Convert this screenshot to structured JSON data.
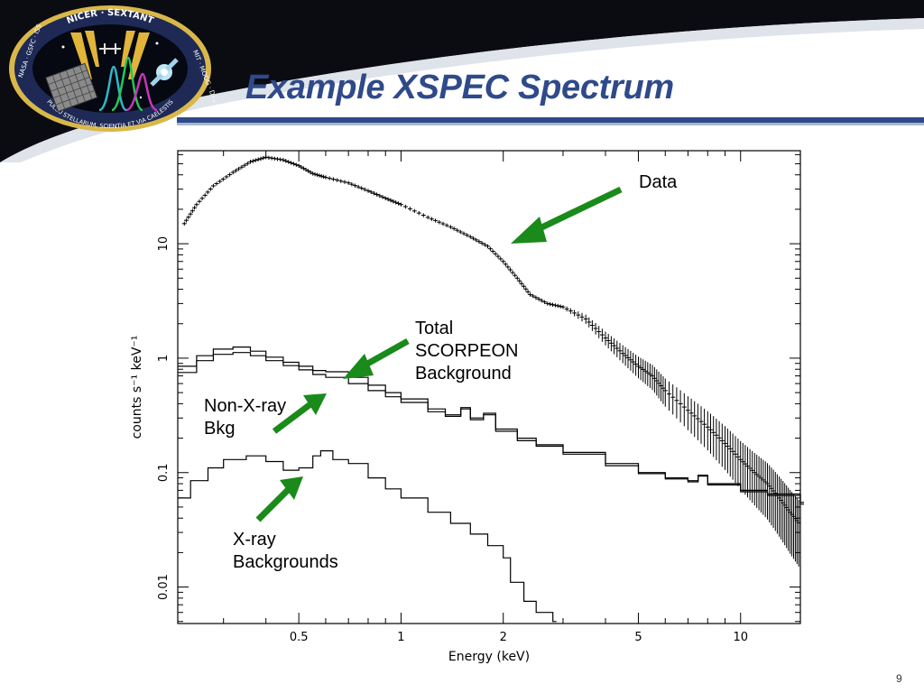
{
  "slide": {
    "title": "Example XSPEC Spectrum",
    "page_number": "9"
  },
  "logo": {
    "top_text": "NICER · SEXTANT",
    "left_text": "NASA · GSFC · ISS",
    "right_text": "MIT · MOOG · DTU",
    "bottom_text": "PULSU STELLARUM, SCIENTIA ET VIA CAELESTIS"
  },
  "colors": {
    "title": "#2f4a8a",
    "header_dark": "#0b0b12",
    "arrow": "#1a8a1a",
    "header_line": "#2f4a8a"
  },
  "chart_data": {
    "type": "line",
    "xlabel": "Energy (keV)",
    "ylabel": "counts s⁻¹ keV⁻¹",
    "xscale": "log",
    "yscale": "log",
    "xlim": [
      0.22,
      15
    ],
    "ylim": [
      0.0048,
      65
    ],
    "x_ticks": [
      {
        "value": 0.5,
        "label": "0.5"
      },
      {
        "value": 1,
        "label": "1"
      },
      {
        "value": 2,
        "label": "2"
      },
      {
        "value": 5,
        "label": "5"
      },
      {
        "value": 10,
        "label": "10"
      }
    ],
    "y_ticks": [
      {
        "value": 0.01,
        "label": "0.01"
      },
      {
        "value": 0.1,
        "label": "0.1"
      },
      {
        "value": 1,
        "label": "1"
      },
      {
        "value": 10,
        "label": "10"
      }
    ],
    "series": [
      {
        "name": "Data",
        "style": "crosses",
        "points": [
          [
            0.23,
            15
          ],
          [
            0.25,
            22
          ],
          [
            0.28,
            32
          ],
          [
            0.32,
            42
          ],
          [
            0.36,
            52
          ],
          [
            0.4,
            57
          ],
          [
            0.45,
            54
          ],
          [
            0.5,
            48
          ],
          [
            0.55,
            41
          ],
          [
            0.6,
            38
          ],
          [
            0.7,
            34
          ],
          [
            0.8,
            29
          ],
          [
            0.9,
            25
          ],
          [
            1.0,
            22
          ],
          [
            1.2,
            17
          ],
          [
            1.4,
            14
          ],
          [
            1.6,
            11.5
          ],
          [
            1.8,
            9.5
          ],
          [
            2.0,
            7.0
          ],
          [
            2.2,
            5.0
          ],
          [
            2.4,
            3.6
          ],
          [
            2.7,
            3.0
          ],
          [
            3.0,
            2.8
          ],
          [
            3.5,
            2.2
          ],
          [
            4.0,
            1.5
          ],
          [
            4.5,
            1.1
          ],
          [
            5.0,
            0.85
          ],
          [
            5.5,
            0.7
          ],
          [
            6.0,
            0.52
          ],
          [
            7.0,
            0.35
          ],
          [
            8.0,
            0.25
          ],
          [
            9.0,
            0.18
          ],
          [
            10.0,
            0.13
          ],
          [
            11.0,
            0.1
          ],
          [
            12.0,
            0.08
          ],
          [
            13.0,
            0.06
          ],
          [
            14.0,
            0.045
          ],
          [
            15.0,
            0.035
          ]
        ]
      },
      {
        "name": "Total SCORPEON Background",
        "style": "histogram",
        "points": [
          [
            0.22,
            0.85
          ],
          [
            0.25,
            1.05
          ],
          [
            0.28,
            1.2
          ],
          [
            0.32,
            1.25
          ],
          [
            0.36,
            1.15
          ],
          [
            0.4,
            1.02
          ],
          [
            0.45,
            0.92
          ],
          [
            0.5,
            0.85
          ],
          [
            0.55,
            0.78
          ],
          [
            0.6,
            0.76
          ],
          [
            0.7,
            0.68
          ],
          [
            0.8,
            0.58
          ],
          [
            0.9,
            0.5
          ],
          [
            1.0,
            0.44
          ],
          [
            1.2,
            0.36
          ],
          [
            1.35,
            0.32
          ],
          [
            1.5,
            0.37
          ],
          [
            1.6,
            0.3
          ],
          [
            1.75,
            0.33
          ],
          [
            1.9,
            0.24
          ],
          [
            2.2,
            0.2
          ],
          [
            2.5,
            0.175
          ],
          [
            3.0,
            0.15
          ],
          [
            4.0,
            0.12
          ],
          [
            5.0,
            0.1
          ],
          [
            6.0,
            0.09
          ],
          [
            7.0,
            0.085
          ],
          [
            7.5,
            0.095
          ],
          [
            8.0,
            0.08
          ],
          [
            10.0,
            0.07
          ],
          [
            12.0,
            0.065
          ],
          [
            15.0,
            0.055
          ]
        ]
      },
      {
        "name": "Non-X-ray Bkg",
        "style": "histogram",
        "points": [
          [
            0.22,
            0.75
          ],
          [
            0.25,
            0.95
          ],
          [
            0.28,
            1.08
          ],
          [
            0.32,
            1.12
          ],
          [
            0.36,
            1.05
          ],
          [
            0.4,
            0.95
          ],
          [
            0.45,
            0.86
          ],
          [
            0.5,
            0.79
          ],
          [
            0.55,
            0.72
          ],
          [
            0.6,
            0.68
          ],
          [
            0.7,
            0.6
          ],
          [
            0.8,
            0.52
          ],
          [
            0.9,
            0.46
          ],
          [
            1.0,
            0.41
          ],
          [
            1.2,
            0.34
          ],
          [
            1.35,
            0.31
          ],
          [
            1.5,
            0.36
          ],
          [
            1.6,
            0.29
          ],
          [
            1.75,
            0.32
          ],
          [
            1.9,
            0.23
          ],
          [
            2.2,
            0.19
          ],
          [
            2.5,
            0.17
          ],
          [
            3.0,
            0.145
          ],
          [
            4.0,
            0.115
          ],
          [
            5.0,
            0.098
          ],
          [
            6.0,
            0.088
          ],
          [
            7.0,
            0.083
          ],
          [
            7.5,
            0.093
          ],
          [
            8.0,
            0.078
          ],
          [
            10.0,
            0.068
          ],
          [
            12.0,
            0.063
          ],
          [
            15.0,
            0.053
          ]
        ]
      },
      {
        "name": "X-ray Backgrounds",
        "style": "histogram",
        "points": [
          [
            0.22,
            0.06
          ],
          [
            0.24,
            0.085
          ],
          [
            0.27,
            0.11
          ],
          [
            0.3,
            0.13
          ],
          [
            0.35,
            0.14
          ],
          [
            0.4,
            0.125
          ],
          [
            0.45,
            0.105
          ],
          [
            0.5,
            0.11
          ],
          [
            0.55,
            0.14
          ],
          [
            0.58,
            0.155
          ],
          [
            0.63,
            0.13
          ],
          [
            0.7,
            0.12
          ],
          [
            0.8,
            0.09
          ],
          [
            0.9,
            0.072
          ],
          [
            1.0,
            0.06
          ],
          [
            1.2,
            0.045
          ],
          [
            1.4,
            0.036
          ],
          [
            1.6,
            0.029
          ],
          [
            1.8,
            0.023
          ],
          [
            2.0,
            0.018
          ],
          [
            2.1,
            0.011
          ],
          [
            2.3,
            0.0075
          ],
          [
            2.5,
            0.006
          ],
          [
            2.8,
            0.005
          ]
        ]
      }
    ],
    "annotations": [
      {
        "name": "data",
        "lines": [
          "Data"
        ]
      },
      {
        "name": "total",
        "lines": [
          "Total",
          "SCORPEON",
          "Background"
        ]
      },
      {
        "name": "nxb",
        "lines": [
          "Non-X-ray",
          "Bkg"
        ]
      },
      {
        "name": "xray",
        "lines": [
          "X-ray",
          "Backgrounds"
        ]
      }
    ]
  }
}
